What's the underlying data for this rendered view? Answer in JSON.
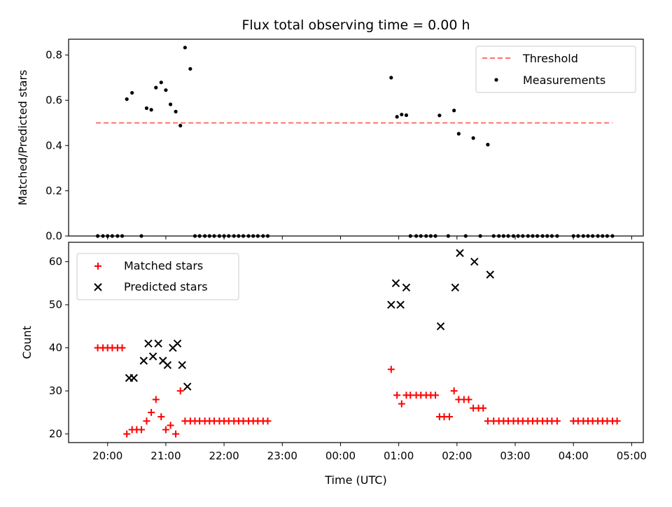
{
  "chart_data": [
    {
      "type": "scatter",
      "title": "Flux total observing time = 0.00 h",
      "xlabel": "",
      "ylabel": "Matched/Predicted stars",
      "ylim": [
        0.0,
        0.87
      ],
      "yticks": [
        "0.0",
        "0.2",
        "0.4",
        "0.6",
        "0.8"
      ],
      "ytick_values": [
        0.0,
        0.2,
        0.4,
        0.6,
        0.8
      ],
      "xlim_hours": [
        19.33,
        29.2
      ],
      "legend_position": "top-right",
      "threshold": {
        "name": "Threshold",
        "value": 0.5,
        "x_start": 19.8,
        "x_end": 28.67,
        "color": "#ff7070"
      },
      "series": [
        {
          "name": "Measurements",
          "color": "#000000",
          "x": [
            19.83,
            19.92,
            20.0,
            20.08,
            20.17,
            20.25,
            20.33,
            20.42,
            20.58,
            20.67,
            20.75,
            20.83,
            20.92,
            21.0,
            21.08,
            21.17,
            21.25,
            21.33,
            21.42,
            21.5,
            21.58,
            21.67,
            21.75,
            21.83,
            21.92,
            22.0,
            22.08,
            22.17,
            22.25,
            22.33,
            22.42,
            22.5,
            22.58,
            22.67,
            22.75,
            24.87,
            24.97,
            25.05,
            25.13,
            25.2,
            25.3,
            25.38,
            25.47,
            25.55,
            25.63,
            25.7,
            25.85,
            25.95,
            26.03,
            26.15,
            26.28,
            26.4,
            26.53,
            26.63,
            26.72,
            26.8,
            26.88,
            26.97,
            27.05,
            27.13,
            27.22,
            27.3,
            27.38,
            27.47,
            27.55,
            27.63,
            27.72,
            28.0,
            28.08,
            28.17,
            28.25,
            28.33,
            28.42,
            28.5,
            28.58,
            28.67
          ],
          "y": [
            0.0,
            0.0,
            0.0,
            0.0,
            0.0,
            0.0,
            0.605,
            0.633,
            0.0,
            0.565,
            0.558,
            0.656,
            0.679,
            0.645,
            0.582,
            0.55,
            0.488,
            0.833,
            0.739,
            0.0,
            0.0,
            0.0,
            0.0,
            0.0,
            0.0,
            0.0,
            0.0,
            0.0,
            0.0,
            0.0,
            0.0,
            0.0,
            0.0,
            0.0,
            0.0,
            0.7,
            0.527,
            0.537,
            0.534,
            0.0,
            0.0,
            0.0,
            0.0,
            0.0,
            0.0,
            0.533,
            0.0,
            0.555,
            0.452,
            0.0,
            0.433,
            0.0,
            0.404,
            0.0,
            0.0,
            0.0,
            0.0,
            0.0,
            0.0,
            0.0,
            0.0,
            0.0,
            0.0,
            0.0,
            0.0,
            0.0,
            0.0,
            0.0,
            0.0,
            0.0,
            0.0,
            0.0,
            0.0,
            0.0,
            0.0,
            0.0
          ]
        }
      ]
    },
    {
      "type": "scatter",
      "title": "",
      "xlabel": "Time (UTC)",
      "ylabel": "Count",
      "ylim": [
        18,
        64.5
      ],
      "yticks": [
        "20",
        "30",
        "40",
        "50",
        "60"
      ],
      "ytick_values": [
        20,
        30,
        40,
        50,
        60
      ],
      "xlim_hours": [
        19.33,
        29.2
      ],
      "xticks": [
        "20:00",
        "21:00",
        "22:00",
        "23:00",
        "00:00",
        "01:00",
        "02:00",
        "03:00",
        "04:00",
        "05:00"
      ],
      "xtick_values": [
        20,
        21,
        22,
        23,
        24,
        25,
        26,
        27,
        28,
        29
      ],
      "legend_position": "top-left",
      "series": [
        {
          "name": "Matched stars",
          "color": "#ff0000",
          "marker": "plus",
          "x": [
            19.83,
            19.92,
            20.0,
            20.08,
            20.17,
            20.25,
            20.33,
            20.42,
            20.5,
            20.58,
            20.67,
            20.75,
            20.83,
            20.92,
            21.0,
            21.08,
            21.17,
            21.25,
            21.33,
            21.42,
            21.5,
            21.58,
            21.67,
            21.75,
            21.83,
            21.92,
            22.0,
            22.08,
            22.17,
            22.25,
            22.33,
            22.42,
            22.5,
            22.58,
            22.67,
            22.75,
            24.87,
            24.97,
            25.05,
            25.13,
            25.2,
            25.3,
            25.38,
            25.47,
            25.55,
            25.63,
            25.7,
            25.78,
            25.87,
            25.95,
            26.03,
            26.12,
            26.2,
            26.28,
            26.37,
            26.45,
            26.53,
            26.63,
            26.72,
            26.8,
            26.88,
            26.97,
            27.05,
            27.13,
            27.22,
            27.3,
            27.38,
            27.47,
            27.55,
            27.63,
            27.72,
            28.0,
            28.08,
            28.17,
            28.25,
            28.33,
            28.42,
            28.5,
            28.58,
            28.67,
            28.75
          ],
          "y": [
            40,
            40,
            40,
            40,
            40,
            40,
            20,
            21,
            21,
            21,
            23,
            25,
            28,
            24,
            21,
            22,
            20,
            30,
            23,
            23,
            23,
            23,
            23,
            23,
            23,
            23,
            23,
            23,
            23,
            23,
            23,
            23,
            23,
            23,
            23,
            23,
            35,
            29,
            27,
            29,
            29,
            29,
            29,
            29,
            29,
            29,
            24,
            24,
            24,
            30,
            28,
            28,
            28,
            26,
            26,
            26,
            23,
            23,
            23,
            23,
            23,
            23,
            23,
            23,
            23,
            23,
            23,
            23,
            23,
            23,
            23,
            23,
            23,
            23,
            23,
            23,
            23,
            23,
            23,
            23,
            23
          ]
        },
        {
          "name": "Predicted stars",
          "color": "#000000",
          "marker": "x",
          "x": [
            20.37,
            20.45,
            20.62,
            20.7,
            20.78,
            20.87,
            20.95,
            21.03,
            21.12,
            21.2,
            21.28,
            21.37,
            24.87,
            24.95,
            25.03,
            25.13,
            25.72,
            25.97,
            26.05,
            26.3,
            26.57
          ],
          "y": [
            33,
            33,
            37,
            41,
            38,
            41,
            37,
            36,
            40,
            41,
            36,
            31,
            50,
            55,
            50,
            54,
            45,
            54,
            62,
            60,
            57
          ]
        }
      ]
    }
  ]
}
